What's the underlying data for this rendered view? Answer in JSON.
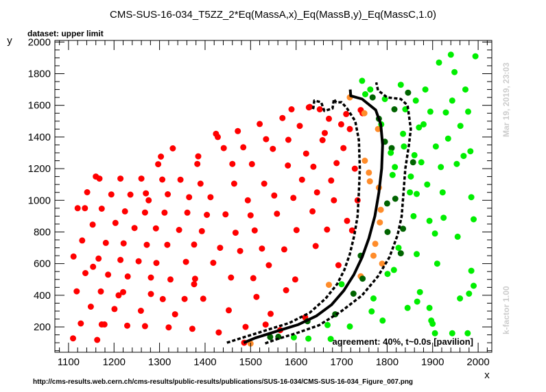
{
  "chart_data": {
    "type": "scatter",
    "title": "CMS-SUS-16-034_T5ZZ_2*Eq(MassA,x)_Eq(MassB,y)_Eq(MassC,1.0)",
    "subtitle": "dataset: upper limit",
    "xlabel": "x",
    "ylabel": "y",
    "xlim": [
      1070,
      2030
    ],
    "ylim": [
      40,
      2010
    ],
    "xticks": [
      1100,
      1200,
      1300,
      1400,
      1500,
      1600,
      1700,
      1800,
      1900,
      2000
    ],
    "yticks": [
      200,
      400,
      600,
      800,
      1000,
      1200,
      1400,
      1600,
      1800,
      2000
    ],
    "annotation": "agreement: 40%, t~0.0s [pavilion]",
    "url": "http://cms-results.web.cern.ch/cms-results/public-results/publications/SUS-16-034/CMS-SUS-16-034_Figure_007.png",
    "timestamp": "Mar 19, 2019, 23:03",
    "kfactor": "k-factor 1.00",
    "colors": {
      "red": "#ff0000",
      "orange": "#ff8c2a",
      "darkgreen": "#006400",
      "green": "#00ee00"
    },
    "points": {
      "red": [
        [
          1111,
          645
        ],
        [
          1110,
          128
        ],
        [
          1120,
          950
        ],
        [
          1118,
          425
        ],
        [
          1127,
          222
        ],
        [
          1130,
          746
        ],
        [
          1136,
          950
        ],
        [
          1137,
          540
        ],
        [
          1141,
          1051
        ],
        [
          1149,
          328
        ],
        [
          1153,
          846
        ],
        [
          1154,
          580
        ],
        [
          1160,
          1150
        ],
        [
          1163,
          118
        ],
        [
          1166,
          632
        ],
        [
          1168,
          1137
        ],
        [
          1171,
          424
        ],
        [
          1173,
          947
        ],
        [
          1173,
          216
        ],
        [
          1179,
          216
        ],
        [
          1182,
          731
        ],
        [
          1187,
          530
        ],
        [
          1194,
          1037
        ],
        [
          1201,
          313
        ],
        [
          1203,
          857
        ],
        [
          1210,
          400
        ],
        [
          1214,
          623
        ],
        [
          1214,
          1137
        ],
        [
          1220,
          420
        ],
        [
          1221,
          728
        ],
        [
          1224,
          930
        ],
        [
          1229,
          208
        ],
        [
          1230,
          519
        ],
        [
          1236,
          1036
        ],
        [
          1245,
          825
        ],
        [
          1254,
          615
        ],
        [
          1260,
          1137
        ],
        [
          1259,
          302
        ],
        [
          1268,
          205
        ],
        [
          1268,
          923
        ],
        [
          1270,
          1044
        ],
        [
          1272,
          719
        ],
        [
          1276,
          1000
        ],
        [
          1281,
          408
        ],
        [
          1281,
          512
        ],
        [
          1292,
          823
        ],
        [
          1293,
          604
        ],
        [
          1297,
          1228
        ],
        [
          1303,
          1276
        ],
        [
          1306,
          1131
        ],
        [
          1307,
          376
        ],
        [
          1311,
          922
        ],
        [
          1317,
          719
        ],
        [
          1318,
          1038
        ],
        [
          1320,
          197
        ],
        [
          1324,
          500
        ],
        [
          1329,
          1328
        ],
        [
          1334,
          280
        ],
        [
          1343,
          813
        ],
        [
          1346,
          1130
        ],
        [
          1355,
          377
        ],
        [
          1358,
          611
        ],
        [
          1361,
          922
        ],
        [
          1365,
          1020
        ],
        [
          1372,
          188
        ],
        [
          1376,
          720
        ],
        [
          1376,
          470
        ],
        [
          1378,
          504
        ],
        [
          1383,
          1230
        ],
        [
          1385,
          1278
        ],
        [
          1390,
          1105
        ],
        [
          1393,
          805
        ],
        [
          1396,
          378
        ],
        [
          1404,
          908
        ],
        [
          1412,
          1020
        ],
        [
          1418,
          605
        ],
        [
          1424,
          1420
        ],
        [
          1428,
          1400
        ],
        [
          1430,
          165
        ],
        [
          1433,
          700
        ],
        [
          1441,
          1330
        ],
        [
          1445,
          911
        ],
        [
          1452,
          305
        ],
        [
          1457,
          512
        ],
        [
          1460,
          1230
        ],
        [
          1464,
          1105
        ],
        [
          1467,
          795
        ],
        [
          1472,
          1437
        ],
        [
          1477,
          680
        ],
        [
          1484,
          1335
        ],
        [
          1486,
          100
        ],
        [
          1489,
          200
        ],
        [
          1494,
          1000
        ],
        [
          1500,
          905
        ],
        [
          1503,
          1229
        ],
        [
          1506,
          508
        ],
        [
          1509,
          810
        ],
        [
          1513,
          390
        ],
        [
          1520,
          1482
        ],
        [
          1525,
          695
        ],
        [
          1530,
          1105
        ],
        [
          1533,
          215
        ],
        [
          1534,
          1386
        ],
        [
          1540,
          590
        ],
        [
          1544,
          283
        ],
        [
          1549,
          1325
        ],
        [
          1552,
          1030
        ],
        [
          1558,
          915
        ],
        [
          1565,
          180
        ],
        [
          1570,
          1520
        ],
        [
          1574,
          690
        ],
        [
          1578,
          432
        ],
        [
          1582,
          1220
        ],
        [
          1583,
          1382
        ],
        [
          1590,
          1575
        ],
        [
          1594,
          1015
        ],
        [
          1598,
          500
        ],
        [
          1601,
          812
        ],
        [
          1608,
          1470
        ],
        [
          1613,
          1130
        ],
        [
          1620,
          260
        ],
        [
          1622,
          1295
        ],
        [
          1628,
          1587
        ],
        [
          1630,
          1590
        ],
        [
          1636,
          930
        ],
        [
          1638,
          1212
        ],
        [
          1643,
          711
        ],
        [
          1646,
          1050
        ],
        [
          1652,
          1575
        ],
        [
          1658,
          1380
        ],
        [
          1663,
          1425
        ],
        [
          1668,
          815
        ],
        [
          1672,
          1515
        ],
        [
          1677,
          1125
        ],
        [
          1683,
          1000
        ],
        [
          1689,
          1235
        ],
        [
          1693,
          590
        ],
        [
          1699,
          1480
        ],
        [
          1704,
          1330
        ],
        [
          1710,
          1545
        ],
        [
          1712,
          870
        ],
        [
          1718,
          1450
        ],
        [
          1723,
          810
        ],
        [
          1729,
          1200
        ],
        [
          1735,
          1000
        ],
        [
          1742,
          1570
        ],
        [
          1746,
          1550
        ]
      ],
      "orange": [
        [
          1500,
          95
        ],
        [
          1672,
          466
        ],
        [
          1718,
          1650
        ],
        [
          1742,
          520
        ],
        [
          1750,
          1550
        ],
        [
          1751,
          1250
        ],
        [
          1760,
          1175
        ],
        [
          1762,
          1120
        ],
        [
          1770,
          650
        ],
        [
          1774,
          725
        ],
        [
          1780,
          1450
        ],
        [
          1782,
          1080
        ],
        [
          1784,
          860
        ],
        [
          1786,
          940
        ],
        [
          1789,
          600
        ]
      ],
      "darkgreen": [
        [
          1543,
          136
        ],
        [
          1561,
          138
        ],
        [
          1625,
          236
        ],
        [
          1686,
          280
        ],
        [
          1726,
          410
        ],
        [
          1742,
          650
        ],
        [
          1746,
          505
        ],
        [
          1768,
          1650
        ],
        [
          1782,
          1515
        ],
        [
          1795,
          1370
        ],
        [
          1800,
          980
        ],
        [
          1801,
          800
        ],
        [
          1810,
          1330
        ],
        [
          1816,
          1575
        ],
        [
          1818,
          1010
        ],
        [
          1830,
          665
        ],
        [
          1835,
          820
        ],
        [
          1846,
          1680
        ],
        [
          1857,
          1240
        ]
      ],
      "green": [
        [
          1595,
          134
        ],
        [
          1627,
          126
        ],
        [
          1669,
          212
        ],
        [
          1676,
          124
        ],
        [
          1700,
          470
        ],
        [
          1718,
          203
        ],
        [
          1745,
          1755
        ],
        [
          1752,
          1670
        ],
        [
          1763,
          1700
        ],
        [
          1766,
          298
        ],
        [
          1770,
          380
        ],
        [
          1787,
          1480
        ],
        [
          1790,
          240
        ],
        [
          1795,
          1640
        ],
        [
          1801,
          535
        ],
        [
          1808,
          1300
        ],
        [
          1812,
          1160
        ],
        [
          1815,
          560
        ],
        [
          1817,
          1210
        ],
        [
          1825,
          700
        ],
        [
          1830,
          1730
        ],
        [
          1835,
          1420
        ],
        [
          1837,
          1340
        ],
        [
          1840,
          1575
        ],
        [
          1845,
          320
        ],
        [
          1850,
          1050
        ],
        [
          1852,
          1150
        ],
        [
          1858,
          900
        ],
        [
          1860,
          1285
        ],
        [
          1863,
          1630
        ],
        [
          1865,
          1040
        ],
        [
          1866,
          360
        ],
        [
          1870,
          1460
        ],
        [
          1872,
          420
        ],
        [
          1875,
          1240
        ],
        [
          1880,
          1480
        ],
        [
          1884,
          1700
        ],
        [
          1888,
          1100
        ],
        [
          1893,
          320
        ],
        [
          1895,
          1560
        ],
        [
          1897,
          240
        ],
        [
          1905,
          790
        ],
        [
          1907,
          1340
        ],
        [
          1910,
          600
        ],
        [
          1914,
          1870
        ],
        [
          1918,
          1210
        ],
        [
          1922,
          1050
        ],
        [
          1929,
          1555
        ],
        [
          1934,
          1390
        ],
        [
          1940,
          1920
        ],
        [
          1943,
          1630
        ],
        [
          1948,
          1810
        ],
        [
          1953,
          1230
        ],
        [
          1955,
          770
        ],
        [
          1961,
          1470
        ],
        [
          1968,
          1280
        ],
        [
          1972,
          1700
        ],
        [
          1978,
          1560
        ],
        [
          1983,
          1310
        ],
        [
          1990,
          880
        ],
        [
          1994,
          1910
        ],
        [
          1960,
          380
        ],
        [
          1977,
          160
        ],
        [
          1985,
          1020
        ],
        [
          1905,
          160
        ],
        [
          1943,
          160
        ],
        [
          1924,
          890
        ],
        [
          1865,
          660
        ],
        [
          1893,
          870
        ],
        [
          1985,
          555
        ],
        [
          1990,
          460
        ],
        [
          1980,
          410
        ],
        [
          1900,
          220
        ]
      ]
    },
    "curves": {
      "central": [
        [
          1485,
          100
        ],
        [
          1510,
          130
        ],
        [
          1560,
          175
        ],
        [
          1605,
          215
        ],
        [
          1645,
          270
        ],
        [
          1678,
          340
        ],
        [
          1705,
          430
        ],
        [
          1727,
          530
        ],
        [
          1745,
          640
        ],
        [
          1760,
          760
        ],
        [
          1773,
          900
        ],
        [
          1782,
          1050
        ],
        [
          1788,
          1200
        ],
        [
          1790,
          1350
        ],
        [
          1786,
          1480
        ],
        [
          1775,
          1570
        ],
        [
          1745,
          1640
        ],
        [
          1720,
          1660
        ],
        [
          1719,
          1700
        ]
      ],
      "expected_upper": [
        [
          1448,
          100
        ],
        [
          1480,
          130
        ],
        [
          1530,
          175
        ],
        [
          1585,
          225
        ],
        [
          1630,
          290
        ],
        [
          1665,
          380
        ],
        [
          1690,
          470
        ],
        [
          1706,
          560
        ],
        [
          1718,
          660
        ],
        [
          1728,
          780
        ],
        [
          1735,
          900
        ],
        [
          1738,
          1050
        ],
        [
          1740,
          1200
        ],
        [
          1738,
          1380
        ],
        [
          1730,
          1500
        ],
        [
          1712,
          1580
        ],
        [
          1700,
          1620
        ],
        [
          1688,
          1618
        ],
        [
          1683,
          1640
        ],
        [
          1680,
          1580
        ],
        [
          1662,
          1565
        ],
        [
          1655,
          1620
        ],
        [
          1640,
          1630
        ],
        [
          1638,
          1585
        ],
        [
          1636,
          1565
        ]
      ],
      "expected_lower": [
        [
          1532,
          96
        ],
        [
          1555,
          120
        ],
        [
          1600,
          160
        ],
        [
          1650,
          210
        ],
        [
          1700,
          300
        ],
        [
          1745,
          400
        ],
        [
          1780,
          520
        ],
        [
          1805,
          640
        ],
        [
          1823,
          780
        ],
        [
          1832,
          900
        ],
        [
          1836,
          1050
        ],
        [
          1840,
          1200
        ],
        [
          1848,
          1350
        ],
        [
          1852,
          1450
        ],
        [
          1845,
          1600
        ],
        [
          1830,
          1640
        ],
        [
          1800,
          1650
        ],
        [
          1780,
          1695
        ],
        [
          1776,
          1745
        ]
      ]
    }
  }
}
